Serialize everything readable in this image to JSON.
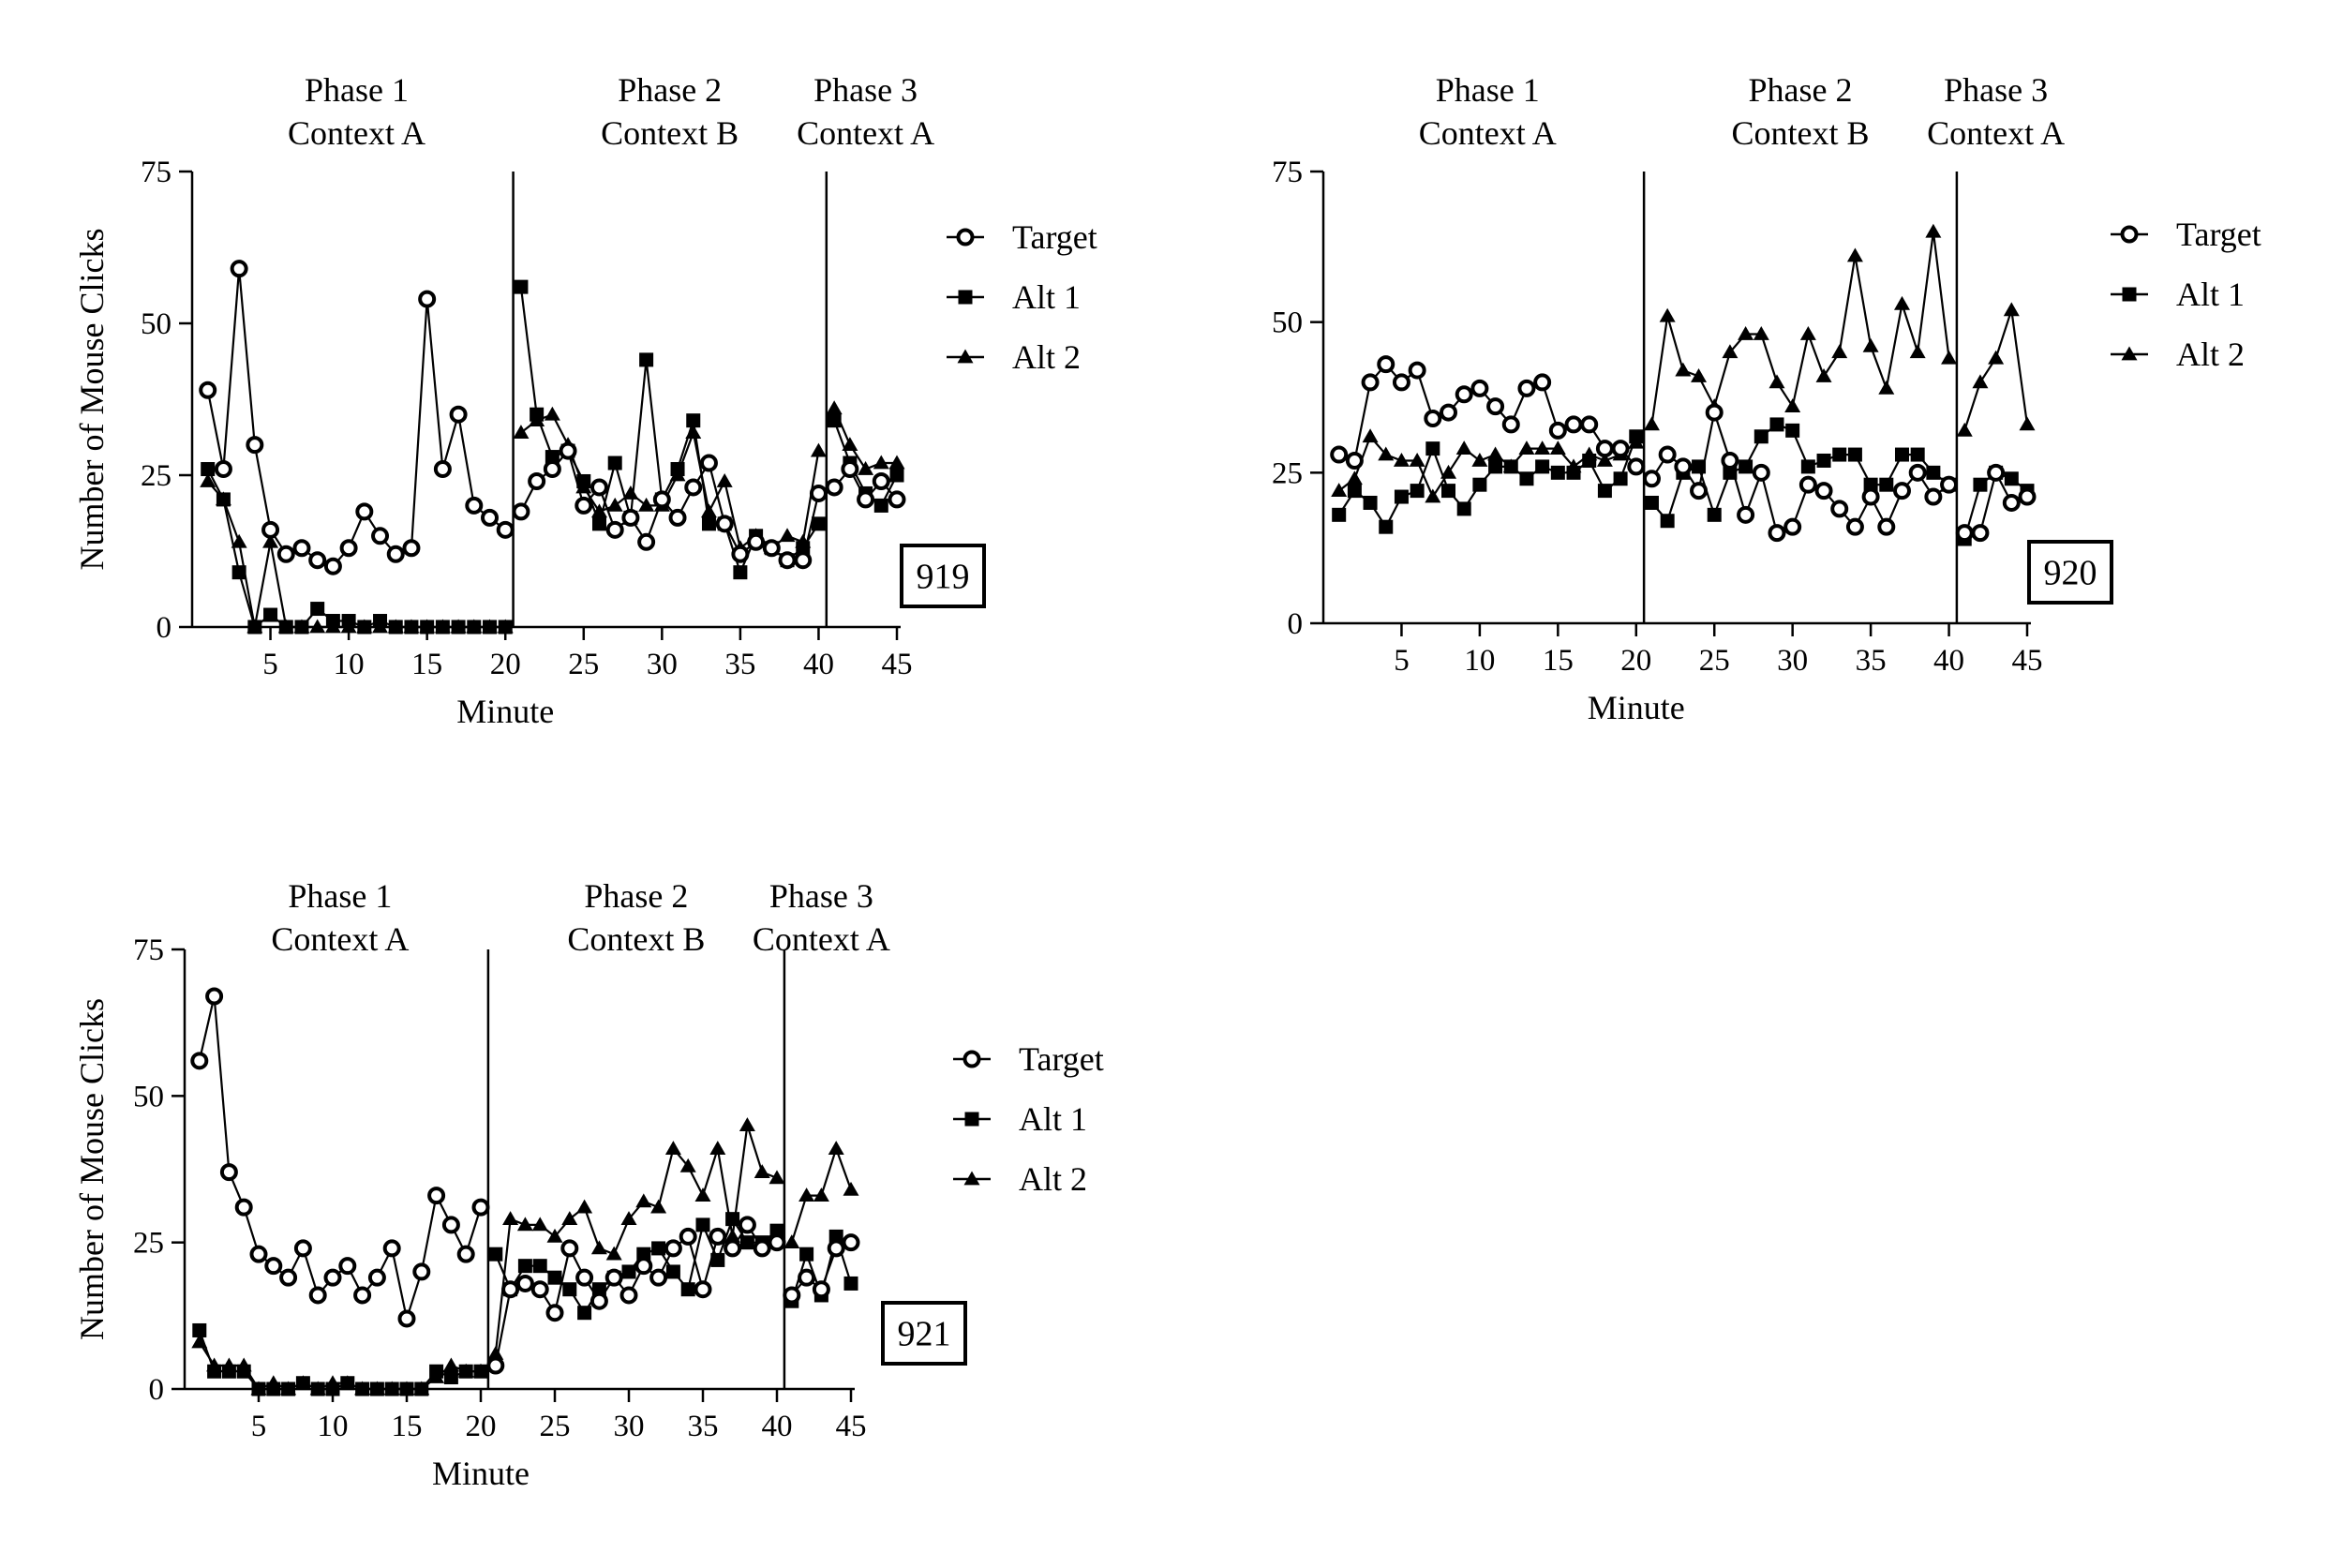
{
  "chart_data": [
    {
      "type": "line",
      "id_label": "919",
      "ylabel": "Number of Mouse Clicks",
      "xlabel": "Minute",
      "ylim": [
        0,
        75
      ],
      "xlim": [
        0,
        45
      ],
      "yticks": [
        0,
        25,
        50,
        75
      ],
      "xticks": [
        5,
        10,
        15,
        20,
        25,
        30,
        35,
        40,
        45
      ],
      "phase_dividers": [
        20.5,
        40.5
      ],
      "phases": [
        {
          "line1": "Phase 1",
          "line2": "Context A",
          "center": 10.5
        },
        {
          "line1": "Phase 2",
          "line2": "Context B",
          "center": 30.5
        },
        {
          "line1": "Phase 3",
          "line2": "Context A",
          "center": 43
        }
      ],
      "legend": {
        "placement": "right"
      },
      "series": [
        {
          "name": "Target",
          "marker": "open-circle",
          "values": [
            39,
            26,
            59,
            30,
            16,
            12,
            13,
            11,
            10,
            13,
            19,
            15,
            12,
            13,
            54,
            26,
            35,
            20,
            18,
            16,
            19,
            24,
            26,
            29,
            20,
            23,
            16,
            18,
            14,
            21,
            18,
            23,
            27,
            17,
            12,
            14,
            13,
            11,
            11,
            22,
            23,
            26,
            21,
            24,
            21
          ]
        },
        {
          "name": "Alt 1",
          "marker": "filled-square",
          "values": [
            26,
            21,
            9,
            0,
            2,
            0,
            0,
            3,
            1,
            1,
            0,
            1,
            0,
            0,
            0,
            0,
            0,
            0,
            0,
            0,
            56,
            35,
            28,
            29,
            24,
            17,
            27,
            18,
            44,
            21,
            26,
            34,
            17,
            17,
            9,
            15,
            13,
            11,
            13,
            17,
            34,
            27,
            22,
            20,
            25
          ]
        },
        {
          "name": "Alt 2",
          "marker": "filled-triangle",
          "values": [
            24,
            21,
            14,
            0,
            14,
            0,
            0,
            0,
            0,
            0,
            0,
            0,
            0,
            0,
            0,
            0,
            0,
            0,
            0,
            0,
            32,
            34,
            35,
            30,
            23,
            19,
            20,
            22,
            20,
            20,
            25,
            32,
            19,
            24,
            13,
            15,
            13,
            15,
            14,
            29,
            36,
            30,
            26,
            27,
            27
          ]
        }
      ]
    },
    {
      "type": "line",
      "id_label": "920",
      "ylabel": "",
      "xlabel": "Minute",
      "ylim": [
        0,
        75
      ],
      "xlim": [
        0,
        45
      ],
      "yticks": [
        0,
        25,
        50,
        75
      ],
      "xticks": [
        5,
        10,
        15,
        20,
        25,
        30,
        35,
        40,
        45
      ],
      "phase_dividers": [
        20.5,
        40.5
      ],
      "phases": [
        {
          "line1": "Phase 1",
          "line2": "Context A",
          "center": 10.5
        },
        {
          "line1": "Phase 2",
          "line2": "Context B",
          "center": 30.5
        },
        {
          "line1": "Phase 3",
          "line2": "Context A",
          "center": 43
        }
      ],
      "legend": {
        "placement": "right"
      },
      "series": [
        {
          "name": "Target",
          "marker": "open-circle",
          "values": [
            28,
            27,
            40,
            43,
            40,
            42,
            34,
            35,
            38,
            39,
            36,
            33,
            39,
            40,
            32,
            33,
            33,
            29,
            29,
            26,
            24,
            28,
            26,
            22,
            35,
            27,
            18,
            25,
            15,
            16,
            23,
            22,
            19,
            16,
            21,
            16,
            22,
            25,
            21,
            23,
            15,
            15,
            25,
            20,
            21
          ]
        },
        {
          "name": "Alt 1",
          "marker": "filled-square",
          "values": [
            18,
            22,
            20,
            16,
            21,
            22,
            29,
            22,
            19,
            23,
            26,
            26,
            24,
            26,
            25,
            25,
            27,
            22,
            24,
            31,
            20,
            17,
            25,
            26,
            18,
            25,
            26,
            31,
            33,
            32,
            26,
            27,
            28,
            28,
            23,
            23,
            28,
            28,
            25,
            23,
            14,
            23,
            25,
            24,
            22
          ]
        },
        {
          "name": "Alt 2",
          "marker": "filled-triangle",
          "values": [
            22,
            24,
            31,
            28,
            27,
            27,
            21,
            25,
            29,
            27,
            28,
            26,
            29,
            29,
            29,
            26,
            28,
            27,
            28,
            30,
            33,
            51,
            42,
            41,
            36,
            45,
            48,
            48,
            40,
            36,
            48,
            41,
            45,
            61,
            46,
            39,
            53,
            45,
            65,
            44,
            32,
            40,
            44,
            52,
            33
          ]
        }
      ]
    },
    {
      "type": "line",
      "id_label": "921",
      "ylabel": "Number of Mouse Clicks",
      "xlabel": "Minute",
      "ylim": [
        0,
        75
      ],
      "xlim": [
        0,
        45
      ],
      "yticks": [
        0,
        25,
        50,
        75
      ],
      "xticks": [
        5,
        10,
        15,
        20,
        25,
        30,
        35,
        40,
        45
      ],
      "phase_dividers": [
        20.5,
        40.5
      ],
      "phases": [
        {
          "line1": "Phase 1",
          "line2": "Context A",
          "center": 10.5
        },
        {
          "line1": "Phase 2",
          "line2": "Context B",
          "center": 30.5
        },
        {
          "line1": "Phase 3",
          "line2": "Context A",
          "center": 43
        }
      ],
      "legend": {
        "placement": "right"
      },
      "series": [
        {
          "name": "Target",
          "marker": "open-circle",
          "values": [
            56,
            67,
            37,
            31,
            23,
            21,
            19,
            24,
            16,
            19,
            21,
            16,
            19,
            24,
            12,
            20,
            33,
            28,
            23,
            31,
            4,
            17,
            18,
            17,
            13,
            24,
            19,
            15,
            19,
            16,
            21,
            19,
            24,
            26,
            17,
            26,
            24,
            28,
            24,
            25,
            16,
            19,
            17,
            24,
            25
          ]
        },
        {
          "name": "Alt 1",
          "marker": "filled-square",
          "values": [
            10,
            3,
            3,
            3,
            0,
            0,
            0,
            1,
            0,
            0,
            1,
            0,
            0,
            0,
            0,
            0,
            3,
            2,
            3,
            3,
            23,
            17,
            21,
            21,
            19,
            17,
            13,
            17,
            19,
            20,
            23,
            24,
            20,
            17,
            28,
            22,
            29,
            25,
            25,
            27,
            15,
            23,
            16,
            26,
            18
          ]
        },
        {
          "name": "Alt 2",
          "marker": "filled-triangle",
          "values": [
            8,
            4,
            4,
            4,
            0,
            1,
            0,
            1,
            0,
            1,
            1,
            0,
            0,
            0,
            0,
            0,
            2,
            4,
            3,
            3,
            6,
            29,
            28,
            28,
            26,
            29,
            31,
            24,
            23,
            29,
            32,
            31,
            41,
            38,
            33,
            41,
            26,
            45,
            37,
            36,
            25,
            33,
            33,
            41,
            34
          ]
        }
      ]
    }
  ]
}
